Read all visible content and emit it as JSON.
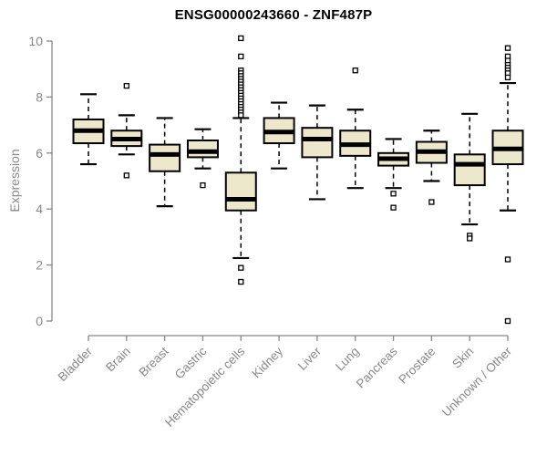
{
  "chart_data": {
    "type": "box",
    "title": "ENSG00000243660 - ZNF487P",
    "ylabel": "Expression",
    "xlabel": "",
    "ylim": [
      0,
      10
    ],
    "yticks": [
      0,
      2,
      4,
      6,
      8,
      10
    ],
    "grid": false,
    "legend": false,
    "categories": [
      "Bladder",
      "Brain",
      "Breast",
      "Gastric",
      "Hematopoietic cells",
      "Kidney",
      "Liver",
      "Lung",
      "Pancreas",
      "Prostate",
      "Skin",
      "Unknown / Other"
    ],
    "series": [
      {
        "category": "Bladder",
        "whisker_low": 5.6,
        "q1": 6.35,
        "median": 6.8,
        "q3": 7.2,
        "whisker_high": 8.1,
        "outliers": []
      },
      {
        "category": "Brain",
        "whisker_low": 5.95,
        "q1": 6.25,
        "median": 6.5,
        "q3": 6.8,
        "whisker_high": 7.35,
        "outliers": [
          8.4,
          5.2
        ]
      },
      {
        "category": "Breast",
        "whisker_low": 4.1,
        "q1": 5.35,
        "median": 5.95,
        "q3": 6.3,
        "whisker_high": 7.25,
        "outliers": []
      },
      {
        "category": "Gastric",
        "whisker_low": 5.45,
        "q1": 5.85,
        "median": 6.05,
        "q3": 6.45,
        "whisker_high": 6.85,
        "outliers": [
          4.85
        ]
      },
      {
        "category": "Hematopoietic cells",
        "whisker_low": 2.25,
        "q1": 3.95,
        "median": 4.35,
        "q3": 5.3,
        "whisker_high": 7.25,
        "outliers": [
          10.1,
          9.45,
          8.95,
          8.85,
          8.75,
          8.65,
          8.55,
          8.45,
          8.35,
          8.25,
          8.15,
          8.05,
          7.95,
          7.85,
          7.75,
          7.65,
          7.55,
          7.45,
          7.35,
          1.9,
          1.4
        ]
      },
      {
        "category": "Kidney",
        "whisker_low": 5.45,
        "q1": 6.35,
        "median": 6.75,
        "q3": 7.25,
        "whisker_high": 7.8,
        "outliers": []
      },
      {
        "category": "Liver",
        "whisker_low": 4.35,
        "q1": 5.85,
        "median": 6.5,
        "q3": 6.9,
        "whisker_high": 7.7,
        "outliers": []
      },
      {
        "category": "Lung",
        "whisker_low": 4.75,
        "q1": 5.9,
        "median": 6.3,
        "q3": 6.8,
        "whisker_high": 7.55,
        "outliers": [
          8.95
        ]
      },
      {
        "category": "Pancreas",
        "whisker_low": 4.75,
        "q1": 5.55,
        "median": 5.8,
        "q3": 6.0,
        "whisker_high": 6.5,
        "outliers": [
          4.55,
          4.05
        ]
      },
      {
        "category": "Prostate",
        "whisker_low": 5.0,
        "q1": 5.65,
        "median": 6.05,
        "q3": 6.4,
        "whisker_high": 6.8,
        "outliers": [
          4.25
        ]
      },
      {
        "category": "Skin",
        "whisker_low": 3.45,
        "q1": 4.85,
        "median": 5.6,
        "q3": 5.95,
        "whisker_high": 7.4,
        "outliers": [
          3.05,
          2.95
        ]
      },
      {
        "category": "Unknown / Other",
        "whisker_low": 3.95,
        "q1": 5.6,
        "median": 6.15,
        "q3": 6.8,
        "whisker_high": 8.5,
        "outliers": [
          9.75,
          9.45,
          9.3,
          9.15,
          9.05,
          8.95,
          8.85,
          8.7,
          2.2,
          0.0
        ]
      }
    ],
    "colors": {
      "box_fill": "#EDE8CC",
      "box_border": "#000000",
      "median": "#000000",
      "whisker": "#000000",
      "outlier_fill": "#FFFFFF",
      "axis": "#888888",
      "title": "#000000",
      "background": "#FFFFFF"
    }
  }
}
